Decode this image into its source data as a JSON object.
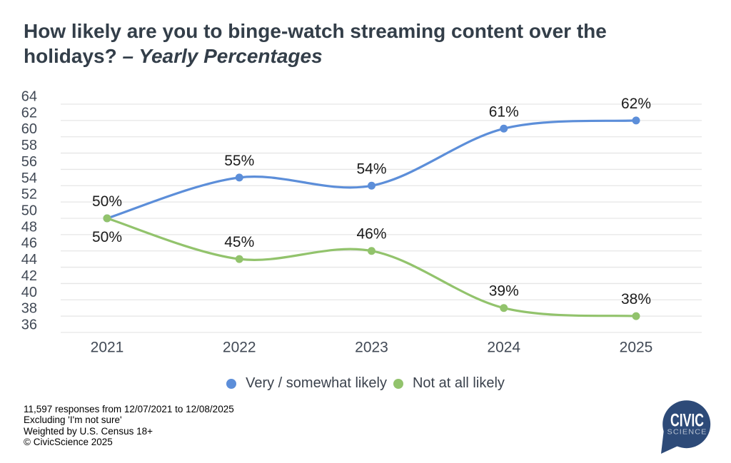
{
  "title": {
    "line1": "How likely are you to binge-watch streaming content over the",
    "line2_regular": "holidays? ",
    "line2_italic": "– Yearly Percentages"
  },
  "chart_data": {
    "type": "line",
    "title": "How likely are you to binge-watch streaming content over the holidays? – Yearly Percentages",
    "categories": [
      "2021",
      "2022",
      "2023",
      "2024",
      "2025"
    ],
    "series": [
      {
        "name": "Very / somewhat likely",
        "color": "#5c8ed9",
        "values": [
          50,
          55,
          54,
          61,
          62
        ],
        "labels": [
          "50%",
          "55%",
          "54%",
          "61%",
          "62%"
        ],
        "label_side": [
          "above",
          "above",
          "above",
          "above",
          "above"
        ]
      },
      {
        "name": "Not at all likely",
        "color": "#92c36c",
        "values": [
          50,
          45,
          46,
          39,
          38
        ],
        "labels": [
          "50%",
          "45%",
          "46%",
          "39%",
          "38%"
        ],
        "label_side": [
          "below",
          "above",
          "above",
          "above",
          "above"
        ]
      }
    ],
    "ylim": [
      36,
      64
    ],
    "ytick_step": 2,
    "grid": true,
    "grid_color": "#e6e6e6",
    "axis_text_color": "#414955",
    "data_label_color": "#1b1b1b",
    "legend_position": "bottom",
    "xlabel": "",
    "ylabel": ""
  },
  "legend": {
    "items": [
      {
        "label": "Very / somewhat likely",
        "color": "#5c8ed9"
      },
      {
        "label": "Not at all likely",
        "color": "#92c36c"
      }
    ]
  },
  "footer": {
    "lines": [
      "11,597 responses from 12/07/2021 to 12/08/2025",
      "Excluding 'I'm not sure'",
      "Weighted by U.S. Census 18+",
      "© CivicScience 2025"
    ]
  },
  "logo": {
    "line1": "CIVIC",
    "line2": "SCIENCE",
    "bubble_color": "#2d4a78",
    "line1_color": "#ffffff",
    "line2_color": "#b8c2d2"
  }
}
